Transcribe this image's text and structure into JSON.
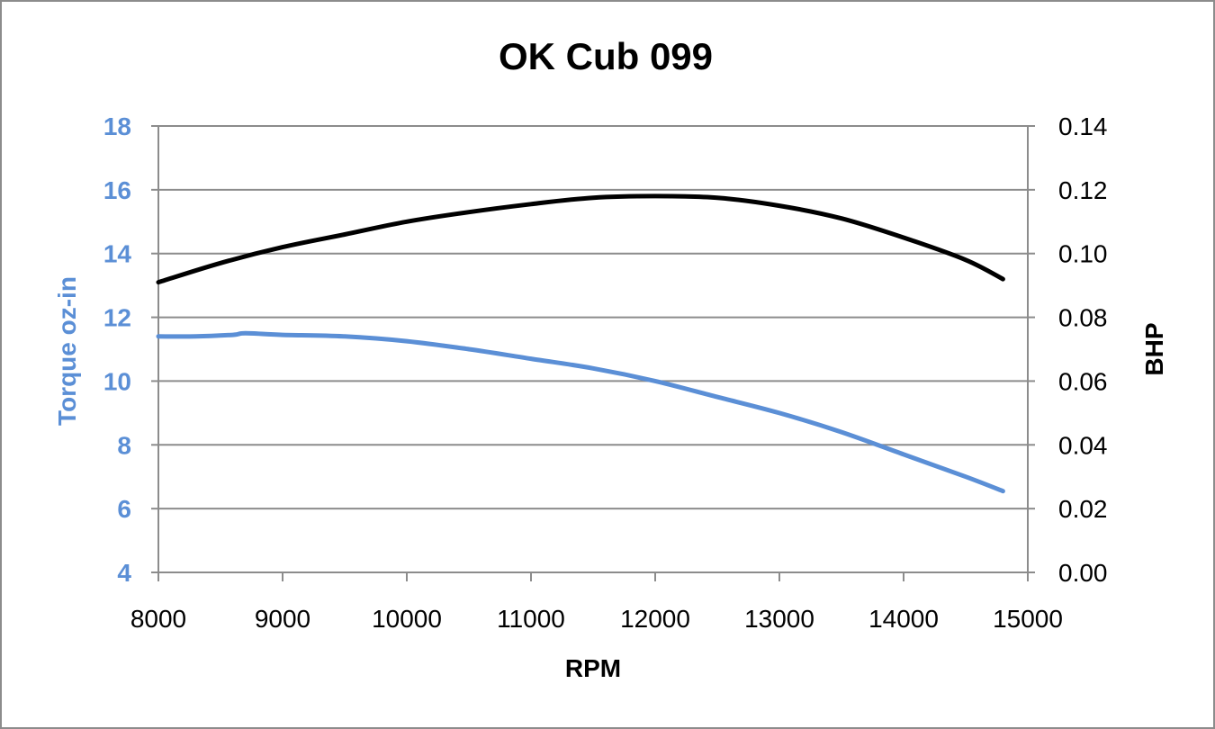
{
  "chart_data": {
    "type": "line",
    "title": "OK Cub 099",
    "xlabel": "RPM",
    "ylabel_left": "Torque oz-in",
    "ylabel_right": "BHP",
    "xlim": [
      8000,
      15000
    ],
    "xticks": [
      8000,
      9000,
      10000,
      11000,
      12000,
      13000,
      14000,
      15000
    ],
    "ylim_left": [
      4,
      18
    ],
    "yticks_left": [
      4,
      6,
      8,
      10,
      12,
      14,
      16,
      18
    ],
    "ylim_right": [
      0.0,
      0.14
    ],
    "yticks_right": [
      "0.00",
      "0.02",
      "0.04",
      "0.06",
      "0.08",
      "0.10",
      "0.12",
      "0.14"
    ],
    "grid": true,
    "legend": false,
    "series": [
      {
        "axis": "left",
        "color": "#5b8fd6",
        "x": [
          8000,
          8300,
          8600,
          8700,
          9000,
          9500,
          10000,
          10500,
          11000,
          11500,
          12000,
          12500,
          13000,
          13500,
          14000,
          14500,
          14800
        ],
        "y": [
          11.4,
          11.4,
          11.45,
          11.5,
          11.45,
          11.4,
          11.25,
          11.0,
          10.7,
          10.4,
          10.0,
          9.5,
          9.0,
          8.4,
          7.7,
          7.0,
          6.55
        ]
      },
      {
        "axis": "right",
        "color": "#000000",
        "x": [
          8000,
          8500,
          9000,
          9500,
          10000,
          10500,
          11000,
          11500,
          12000,
          12500,
          13000,
          13500,
          14000,
          14500,
          14800
        ],
        "y": [
          0.091,
          0.097,
          0.102,
          0.106,
          0.11,
          0.113,
          0.1155,
          0.1175,
          0.118,
          0.1175,
          0.115,
          0.111,
          0.105,
          0.098,
          0.092
        ]
      }
    ],
    "colors": {
      "left_axis_text": "#5b8fd6",
      "right_axis_text": "#000000",
      "grid": "#8c8c8c",
      "frame": "#8c8c8c"
    }
  }
}
